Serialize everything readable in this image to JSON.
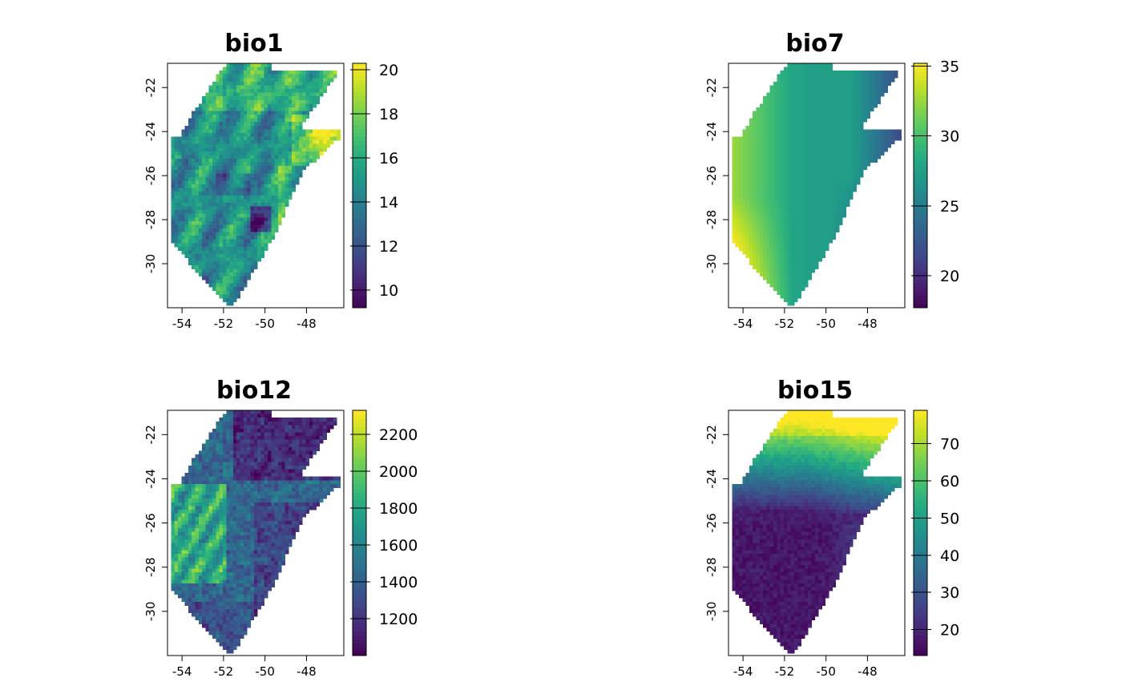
{
  "chart_data": [
    {
      "type": "heatmap",
      "title": "bio1",
      "x_ticks": [
        "-54",
        "-52",
        "-50",
        "-48"
      ],
      "y_ticks": [
        "-22",
        "-24",
        "-26",
        "-28",
        "-30"
      ],
      "xlim": [
        -54.7,
        -46.2
      ],
      "ylim": [
        -32.0,
        -20.9
      ],
      "colorbar": {
        "min": 9.2,
        "max": 20.3,
        "ticks": [
          10,
          12,
          14,
          16,
          18,
          20
        ],
        "tick_labels": [
          "10",
          "12",
          "14",
          "16",
          "18",
          "20"
        ]
      },
      "colormap": "viridis",
      "field": "bio1"
    },
    {
      "type": "heatmap",
      "title": "bio7",
      "x_ticks": [
        "-54",
        "-52",
        "-50",
        "-48"
      ],
      "y_ticks": [
        "-22",
        "-24",
        "-26",
        "-28",
        "-30"
      ],
      "xlim": [
        -54.7,
        -46.2
      ],
      "ylim": [
        -32.0,
        -20.9
      ],
      "colorbar": {
        "min": 17.7,
        "max": 35.2,
        "ticks": [
          20,
          25,
          30,
          35
        ],
        "tick_labels": [
          "20",
          "25",
          "30",
          "35"
        ]
      },
      "colormap": "viridis",
      "field": "bio7"
    },
    {
      "type": "heatmap",
      "title": "bio12",
      "x_ticks": [
        "-54",
        "-52",
        "-50",
        "-48"
      ],
      "y_ticks": [
        "-22",
        "-24",
        "-26",
        "-28",
        "-30"
      ],
      "xlim": [
        -54.7,
        -46.2
      ],
      "ylim": [
        -32.0,
        -20.9
      ],
      "colorbar": {
        "min": 1000,
        "max": 2330,
        "ticks": [
          1200,
          1400,
          1600,
          1800,
          2000,
          2200
        ],
        "tick_labels": [
          "1200",
          "1400",
          "1600",
          "1800",
          "2000",
          "2200"
        ]
      },
      "colormap": "viridis",
      "field": "bio12"
    },
    {
      "type": "heatmap",
      "title": "bio15",
      "x_ticks": [
        "-54",
        "-52",
        "-50",
        "-48"
      ],
      "y_ticks": [
        "-22",
        "-24",
        "-26",
        "-28",
        "-30"
      ],
      "xlim": [
        -54.7,
        -46.2
      ],
      "ylim": [
        -32.0,
        -20.9
      ],
      "colorbar": {
        "min": 13,
        "max": 79,
        "ticks": [
          20,
          30,
          40,
          50,
          60,
          70
        ],
        "tick_labels": [
          "20",
          "30",
          "40",
          "50",
          "60",
          "70"
        ]
      },
      "colormap": "viridis",
      "field": "bio15"
    }
  ]
}
